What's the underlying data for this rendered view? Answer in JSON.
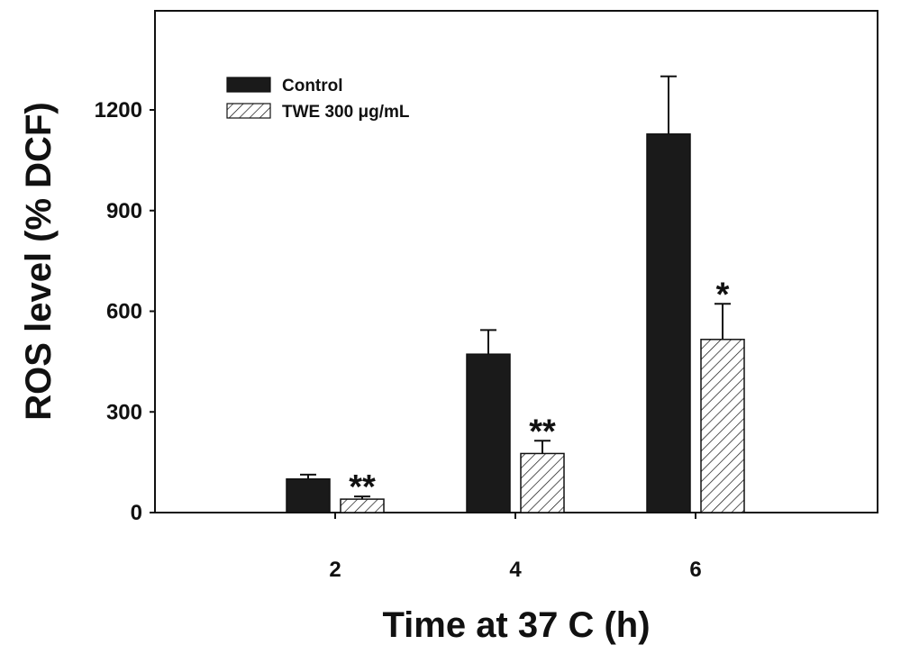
{
  "chart_data": {
    "type": "bar",
    "title": "",
    "xlabel": "Time at 37 C (h)",
    "ylabel": "ROS level (% DCF)",
    "categories": [
      "2",
      "4",
      "6"
    ],
    "ylim": [
      0,
      1200
    ],
    "yticks": [
      0,
      300,
      600,
      900,
      1200
    ],
    "grid": false,
    "legend_position": "top-left",
    "series": [
      {
        "name": "Control",
        "values": [
          100,
          472,
          1128
        ],
        "errors": [
          13,
          72,
          172
        ],
        "significance": [
          "",
          "",
          ""
        ],
        "fill": "solid",
        "color": "#1a1a1a"
      },
      {
        "name": "TWE 300 μg/mL",
        "values": [
          40,
          176,
          516
        ],
        "errors": [
          8,
          38,
          106
        ],
        "significance": [
          "**",
          "**",
          "*"
        ],
        "fill": "hatched",
        "color": "#ffffff"
      }
    ]
  }
}
